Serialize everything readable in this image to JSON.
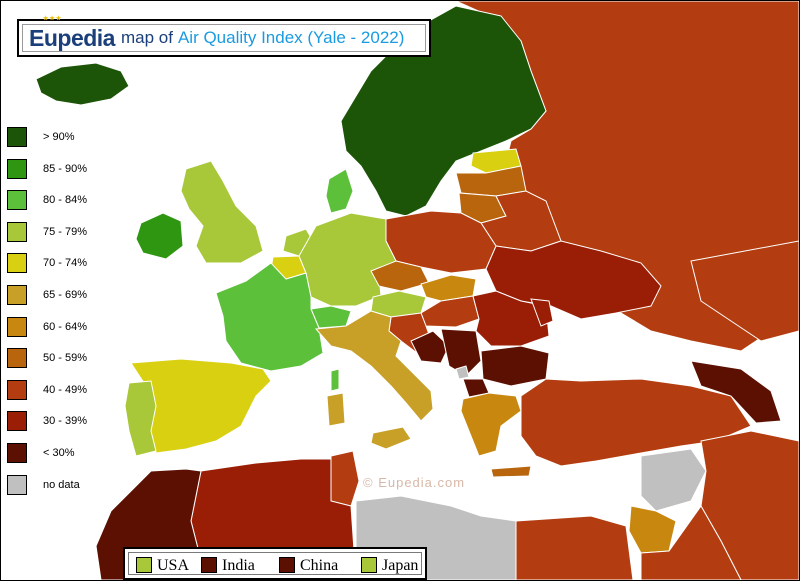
{
  "title": {
    "brand": "Eupedia",
    "middle": "map of",
    "topic": "Air Quality Index (Yale - 2022)"
  },
  "legend": [
    {
      "label": "> 90%",
      "color": "#1c5508"
    },
    {
      "label": "85 - 90%",
      "color": "#2e9610"
    },
    {
      "label": "80 - 84%",
      "color": "#5cc03a"
    },
    {
      "label": "75 - 79%",
      "color": "#a8c83a"
    },
    {
      "label": "70 - 74%",
      "color": "#d8d010"
    },
    {
      "label": "65 - 69%",
      "color": "#c8a028"
    },
    {
      "label": "60 - 64%",
      "color": "#c88810"
    },
    {
      "label": "50 - 59%",
      "color": "#b8650e"
    },
    {
      "label": "40 - 49%",
      "color": "#b33d10"
    },
    {
      "label": "30 - 39%",
      "color": "#9a1e06"
    },
    {
      "label": "< 30%",
      "color": "#5c1002"
    },
    {
      "label": "no data",
      "color": "#c0c0c0"
    }
  ],
  "comparison": [
    {
      "label": "USA",
      "color": "#a8c83a"
    },
    {
      "label": "India",
      "color": "#5c1002"
    },
    {
      "label": "China",
      "color": "#5c1002"
    },
    {
      "label": "Japan",
      "color": "#a8c83a"
    }
  ],
  "watermark": "©  Eupedia.com",
  "colors": {
    "sea": "#ffffff",
    "border": "#ffffff",
    "frame": "#000000"
  }
}
